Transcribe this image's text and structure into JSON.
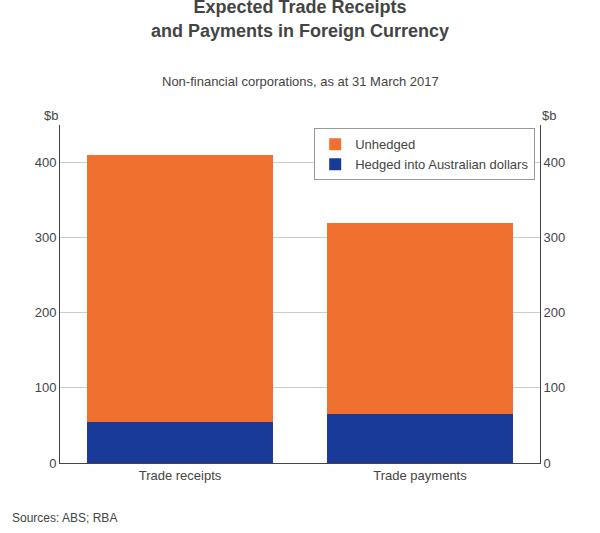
{
  "chart_data": {
    "type": "bar",
    "stacked": true,
    "title": "Expected Trade Receipts\nand Payments in Foreign Currency",
    "subtitle": "Non-financial corporations, as at 31 March 2017",
    "ylabel": "$b",
    "y2label": "$b",
    "annotations": [
      "Sources: ABS; RBA"
    ],
    "categories": [
      "Trade receipts",
      "Trade payments"
    ],
    "series": [
      {
        "name": "Hedged into Australian dollars",
        "color": "#1A3A9A",
        "values": [
          55,
          65
        ]
      },
      {
        "name": "Unhedged",
        "color": "#F07030",
        "values": [
          355,
          255
        ]
      }
    ],
    "ylim": [
      0,
      450
    ],
    "yticks": [
      0,
      100,
      200,
      300,
      400
    ],
    "y2lim": [
      0,
      450
    ],
    "y2ticks": [
      0,
      100,
      200,
      300,
      400
    ],
    "grid": true,
    "legend": "upper right"
  }
}
